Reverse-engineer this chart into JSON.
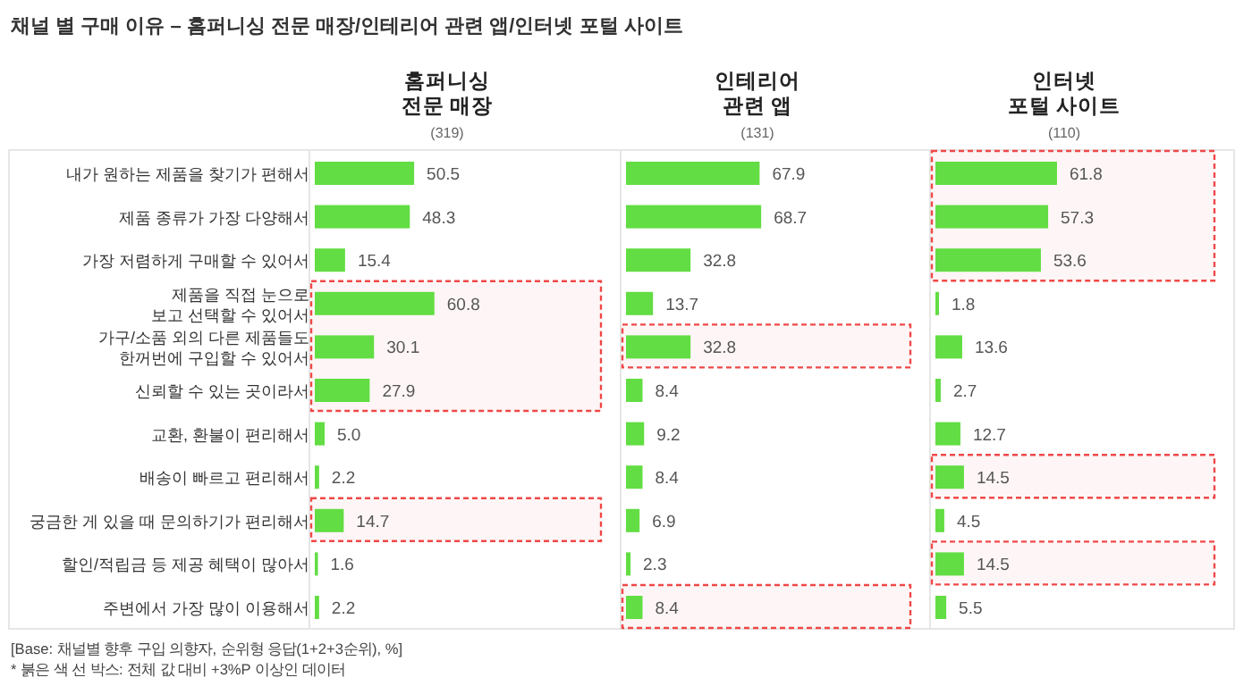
{
  "chart_data": [
    {
      "type": "other",
      "title": "채널 별 구매 이유 – 홈퍼니싱 전문 매장/인테리어 관련 앱/인터넷 포털 사이트"
    },
    {
      "type": "bar",
      "orientation": "horizontal",
      "title": "홈퍼니싱 전문 매장",
      "subtitle": "(319)",
      "tick_labels": "y",
      "color": "#62dd43",
      "categories": [
        "내가 원하는 제품을 찾기가 편해서",
        "제품 종류가 가장 다양해서",
        "가장 저렴하게 구매할 수 있어서",
        "제품을 직접 눈으로 보고 선택할 수 있어서",
        "가구/소품 외의 다른 제품들도 한꺼번에 구입할 수 있어서",
        "신뢰할 수 있는 곳이라서",
        "교환, 환불이 편리해서",
        "배송이 빠르고 편리해서",
        "궁금한 게 있을 때 문의하기가 편리해서",
        "할인/적립금 등 제공 혜택이 많아서",
        "주변에서 가장 많이 이용해서"
      ],
      "values": [
        50.5,
        48.3,
        15.4,
        60.8,
        30.1,
        27.9,
        5.0,
        2.2,
        14.7,
        1.6,
        2.2
      ],
      "value_labels": [
        "50.5",
        "48.3",
        "15.4",
        "60.8",
        "30.1",
        "27.9",
        "5.0",
        "2.2",
        "14.7",
        "1.6",
        "2.2"
      ],
      "bands": [
        {
          "axis": "y",
          "from": "제품을 직접 눈으로 보고 선택할 수 있어서",
          "to": "신뢰할 수 있는 곳이라서",
          "color": "#f04848"
        },
        {
          "axis": "y",
          "from": "궁금한 게 있을 때 문의하기가 편리해서",
          "to": "궁금한 게 있을 때 문의하기가 편리해서",
          "color": "#f04848"
        }
      ]
    },
    {
      "type": "bar",
      "orientation": "horizontal",
      "title": "인테리어 관련 앱",
      "subtitle": "(131)",
      "tick_labels": false,
      "color": "#62dd43",
      "categories": [
        "내가 원하는 제품을 찾기가 편해서",
        "제품 종류가 가장 다양해서",
        "가장 저렴하게 구매할 수 있어서",
        "제품을 직접 눈으로 보고 선택할 수 있어서",
        "가구/소품 외의 다른 제품들도 한꺼번에 구입할 수 있어서",
        "신뢰할 수 있는 곳이라서",
        "교환, 환불이 편리해서",
        "배송이 빠르고 편리해서",
        "궁금한 게 있을 때 문의하기가 편리해서",
        "할인/적립금 등 제공 혜택이 많아서",
        "주변에서 가장 많이 이용해서"
      ],
      "values": [
        67.9,
        68.7,
        32.8,
        13.7,
        32.8,
        8.4,
        9.2,
        8.4,
        6.9,
        2.3,
        8.4
      ],
      "value_labels": [
        "67.9",
        "68.7",
        "32.8",
        "13.7",
        "32.8",
        "8.4",
        "9.2",
        "8.4",
        "6.9",
        "2.3",
        "8.4"
      ],
      "bands": [
        {
          "axis": "y",
          "from": "가구/소품 외의 다른 제품들도 한꺼번에 구입할 수 있어서",
          "to": "가구/소품 외의 다른 제품들도 한꺼번에 구입할 수 있어서",
          "color": "#f04848"
        },
        {
          "axis": "y",
          "from": "주변에서 가장 많이 이용해서",
          "to": "주변에서 가장 많이 이용해서",
          "color": "#f04848"
        }
      ]
    },
    {
      "type": "bar",
      "orientation": "horizontal",
      "title": "인터넷 포털 사이트",
      "subtitle": "(110)",
      "tick_labels": false,
      "color": "#62dd43",
      "categories": [
        "내가 원하는 제품을 찾기가 편해서",
        "제품 종류가 가장 다양해서",
        "가장 저렴하게 구매할 수 있어서",
        "제품을 직접 눈으로 보고 선택할 수 있어서",
        "가구/소품 외의 다른 제품들도 한꺼번에 구입할 수 있어서",
        "신뢰할 수 있는 곳이라서",
        "교환, 환불이 편리해서",
        "배송이 빠르고 편리해서",
        "궁금한 게 있을 때 문의하기가 편리해서",
        "할인/적립금 등 제공 혜택이 많아서",
        "주변에서 가장 많이 이용해서"
      ],
      "values": [
        61.8,
        57.3,
        53.6,
        1.8,
        13.6,
        2.7,
        12.7,
        14.5,
        4.5,
        14.5,
        5.5
      ],
      "value_labels": [
        "61.8",
        "57.3",
        "53.6",
        "1.8",
        "13.6",
        "2.7",
        "12.7",
        "14.5",
        "4.5",
        "14.5",
        "5.5"
      ],
      "bands": [
        {
          "axis": "y",
          "from": "내가 원하는 제품을 찾기가 편해서",
          "to": "가장 저렴하게 구매할 수 있어서",
          "color": "#f04848"
        },
        {
          "axis": "y",
          "from": "배송이 빠르고 편리해서",
          "to": "배송이 빠르고 편리해서",
          "color": "#f04848"
        },
        {
          "axis": "y",
          "from": "할인/적립금 등 제공 혜택이 많아서",
          "to": "할인/적립금 등 제공 혜택이 많아서",
          "color": "#f04848"
        }
      ]
    },
    {
      "type": "other",
      "annotations": [
        "[Base: 채널별 향후 구입 의향자, 순위형 응답(1+2+3순위), %]",
        "* 붉은 색 선 박스: 전체 값 대비 +3%P 이상인 데이터"
      ]
    }
  ]
}
